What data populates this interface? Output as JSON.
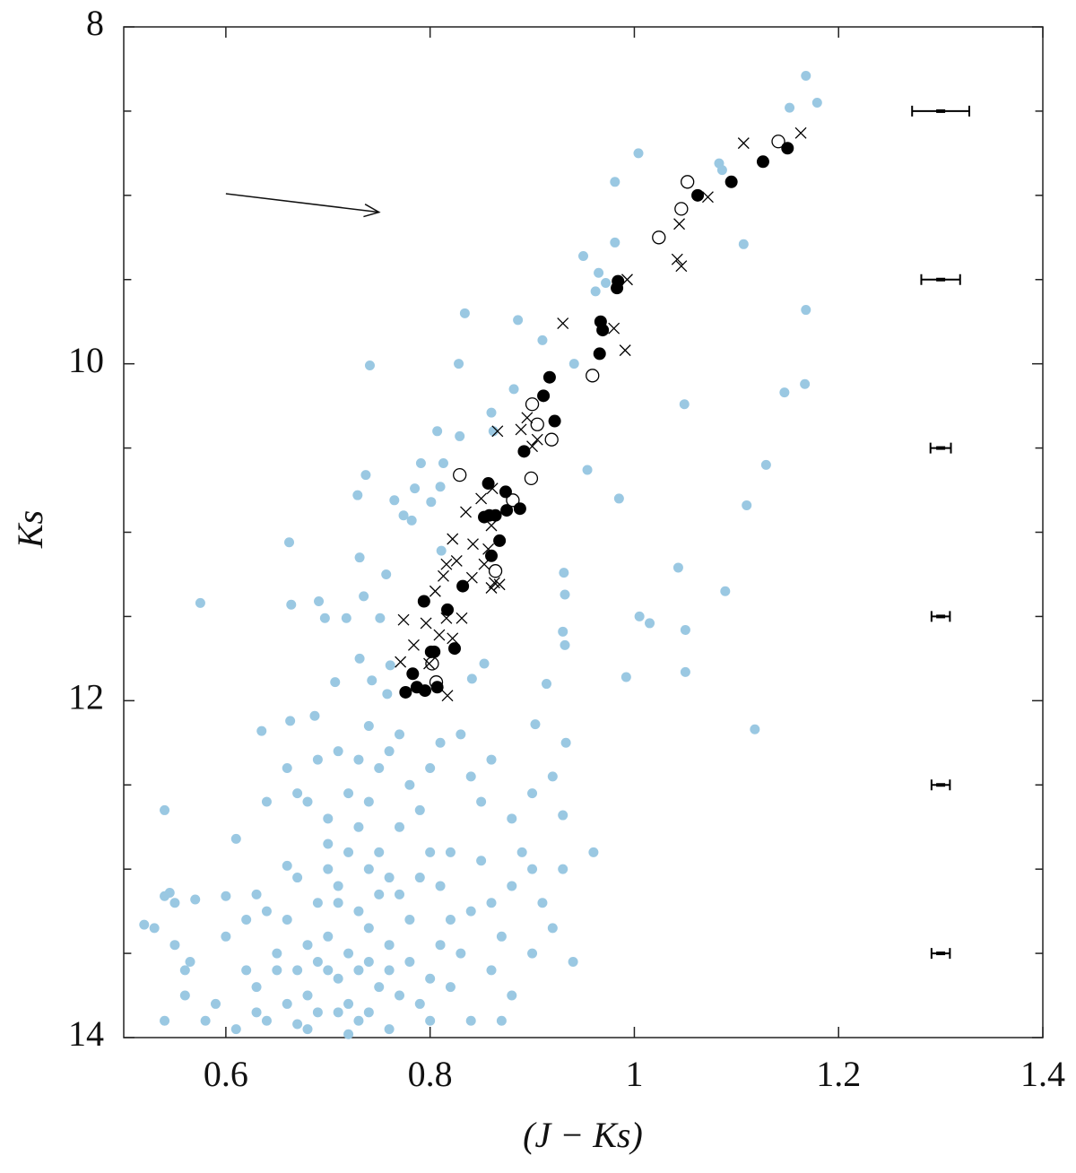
{
  "chart_data": {
    "type": "scatter",
    "xlabel": "(J − Ks)",
    "ylabel": "Ks",
    "xlim": [
      0.5,
      1.4
    ],
    "ylim": [
      8,
      14
    ],
    "y_inverted": true,
    "xticks": [
      0.6,
      0.8,
      1,
      1.2,
      1.4
    ],
    "yticks": [
      8,
      10,
      12,
      14
    ],
    "yminor": [
      8.5,
      9,
      9.5,
      10.5,
      11,
      11.5,
      12.5,
      13,
      13.5
    ],
    "arrow": {
      "from": [
        0.6,
        8.99
      ],
      "to": [
        0.75,
        9.1
      ]
    },
    "series": [
      {
        "marker": "circle-filled",
        "color": "#9ac8e2",
        "x": [
          1.168,
          1.179,
          1.152,
          1.004,
          1.083,
          1.086,
          0.981,
          0.981,
          1.107,
          0.95,
          0.965,
          0.972,
          0.962,
          0.834,
          1.168,
          0.886,
          0.91,
          0.941,
          0.741,
          0.828,
          1.167,
          1.147,
          1.049,
          0.882,
          0.86,
          0.862,
          0.807,
          0.829,
          0.813,
          0.791,
          0.954,
          1.129,
          0.737,
          0.81,
          0.785,
          0.729,
          0.765,
          0.801,
          0.774,
          0.782,
          0.985,
          1.11,
          0.662,
          0.731,
          0.757,
          0.811,
          0.931,
          1.043,
          0.575,
          0.664,
          0.691,
          0.735,
          0.697,
          0.718,
          0.751,
          0.932,
          1.089,
          1.005,
          1.015,
          1.05,
          0.93,
          0.932,
          0.731,
          0.761,
          0.853,
          1.05,
          0.992,
          0.743,
          0.707,
          0.758,
          0.841,
          0.914,
          1.118,
          0.903,
          0.933,
          0.635,
          0.663,
          0.687,
          0.54,
          0.52,
          0.53,
          0.54,
          0.545,
          0.55,
          0.55,
          0.56,
          0.565,
          0.57,
          0.54,
          0.58,
          0.56,
          0.61,
          0.6,
          0.62,
          0.63,
          0.64,
          0.63,
          0.65,
          0.64,
          0.66,
          0.67,
          0.66,
          0.67,
          0.66,
          0.67,
          0.68,
          0.69,
          0.68,
          0.65,
          0.66,
          0.67,
          0.69,
          0.7,
          0.7,
          0.71,
          0.7,
          0.72,
          0.71,
          0.72,
          0.73,
          0.72,
          0.7,
          0.71,
          0.73,
          0.74,
          0.74,
          0.75,
          0.74,
          0.76,
          0.72,
          0.73,
          0.74,
          0.75,
          0.76,
          0.77,
          0.75,
          0.76,
          0.77,
          0.78,
          0.76,
          0.78,
          0.77,
          0.79,
          0.8,
          0.78,
          0.79,
          0.8,
          0.81,
          0.8,
          0.81,
          0.82,
          0.83,
          0.82,
          0.84,
          0.83,
          0.84,
          0.85,
          0.86,
          0.85,
          0.86,
          0.87,
          0.86,
          0.88,
          0.87,
          0.88,
          0.89,
          0.9,
          0.9,
          0.91,
          0.92,
          0.9,
          0.93,
          0.94,
          0.96,
          0.93,
          0.92,
          0.71,
          0.73,
          0.72,
          0.74,
          0.68,
          0.69,
          0.68,
          0.62,
          0.63,
          0.6,
          0.59,
          0.61,
          0.64,
          0.75,
          0.79,
          0.81,
          0.84,
          0.8,
          0.74,
          0.7,
          0.77,
          0.73,
          0.69,
          0.71,
          0.76,
          0.82,
          0.88
        ],
        "values": [
          8.29,
          8.45,
          8.48,
          8.75,
          8.81,
          8.85,
          8.92,
          9.28,
          9.29,
          9.36,
          9.46,
          9.52,
          9.57,
          9.7,
          9.68,
          9.74,
          9.86,
          10,
          10.01,
          10,
          10.12,
          10.17,
          10.24,
          10.15,
          10.29,
          10.4,
          10.4,
          10.43,
          10.59,
          10.59,
          10.63,
          10.6,
          10.66,
          10.73,
          10.74,
          10.78,
          10.81,
          10.82,
          10.9,
          10.93,
          10.8,
          10.84,
          11.06,
          11.15,
          11.25,
          11.11,
          11.24,
          11.21,
          11.42,
          11.43,
          11.41,
          11.38,
          11.51,
          11.51,
          11.51,
          11.37,
          11.35,
          11.5,
          11.54,
          11.58,
          11.59,
          11.67,
          11.75,
          11.79,
          11.78,
          11.83,
          11.86,
          11.88,
          11.89,
          11.96,
          11.87,
          11.9,
          12.17,
          12.14,
          12.25,
          12.18,
          12.12,
          12.09,
          12.65,
          13.33,
          13.35,
          13.16,
          13.14,
          13.2,
          13.45,
          13.6,
          13.55,
          13.18,
          13.9,
          13.9,
          13.75,
          12.82,
          13.16,
          13.6,
          13.7,
          13.9,
          13.85,
          13.5,
          12.6,
          12.4,
          12.55,
          12.98,
          13.05,
          13.3,
          13.6,
          13.75,
          13.85,
          13.95,
          13.6,
          13.8,
          13.92,
          12.35,
          12.7,
          13,
          13.2,
          13.4,
          13.5,
          13.65,
          13.8,
          13.9,
          13.98,
          13.6,
          13.1,
          13.25,
          13.35,
          13.55,
          13.7,
          13.85,
          13.95,
          12.9,
          12.75,
          12.6,
          12.4,
          12.3,
          12.2,
          12.9,
          13.05,
          13.15,
          13.3,
          13.45,
          13.55,
          13.75,
          13.8,
          13.65,
          12.5,
          12.65,
          12.4,
          12.25,
          12.9,
          13.1,
          13.3,
          13.5,
          13.7,
          13.9,
          12.2,
          12.45,
          12.6,
          12.35,
          12.95,
          13.2,
          13.4,
          13.6,
          13.75,
          13.9,
          12.7,
          12.9,
          13,
          12.55,
          13.2,
          13.35,
          13.5,
          13,
          13.55,
          12.9,
          12.68,
          12.45,
          12.3,
          12.35,
          12.55,
          12.15,
          12.6,
          13.2,
          13.45,
          13.3,
          13.15,
          13.4,
          13.8,
          13.95,
          13.25,
          13.15,
          13.05,
          13.45,
          13.25,
          13.9,
          13,
          12.85,
          12.75,
          13.6,
          13.55,
          13.85,
          13.6,
          12.9,
          13.1
        ]
      },
      {
        "marker": "circle-filled",
        "color": "#000000",
        "x": [
          1.15,
          1.126,
          1.095,
          1.062,
          0.983,
          0.984,
          0.967,
          0.969,
          0.966,
          0.917,
          0.911,
          0.922,
          0.892,
          0.857,
          0.874,
          0.875,
          0.888,
          0.853,
          0.858,
          0.864,
          0.868,
          0.86,
          0.832,
          0.794,
          0.817,
          0.801,
          0.804,
          0.824,
          0.783,
          0.787,
          0.795,
          0.776,
          0.807
        ],
        "values": [
          8.72,
          8.8,
          8.92,
          9,
          9.55,
          9.51,
          9.75,
          9.8,
          9.94,
          10.08,
          10.19,
          10.34,
          10.52,
          10.71,
          10.76,
          10.87,
          10.86,
          10.91,
          10.9,
          10.9,
          11.05,
          11.14,
          11.32,
          11.41,
          11.46,
          11.71,
          11.71,
          11.69,
          11.84,
          11.92,
          11.94,
          11.95,
          11.92
        ]
      },
      {
        "marker": "circle-open",
        "color": "#000000",
        "x": [
          1.141,
          1.052,
          1.046,
          1.024,
          0.959,
          0.9,
          0.905,
          0.919,
          0.829,
          0.899,
          0.881,
          0.864,
          0.806,
          0.802
        ],
        "values": [
          8.68,
          8.92,
          9.08,
          9.25,
          10.07,
          10.24,
          10.36,
          10.45,
          10.66,
          10.68,
          10.81,
          11.23,
          11.89,
          11.78
        ]
      },
      {
        "marker": "cross",
        "color": "#000000",
        "x": [
          1.163,
          1.107,
          1.072,
          1.044,
          1.042,
          1.046,
          0.993,
          0.98,
          0.991,
          0.93,
          0.889,
          0.895,
          0.905,
          0.9,
          0.866,
          0.861,
          0.85,
          0.835,
          0.86,
          0.822,
          0.842,
          0.857,
          0.816,
          0.826,
          0.813,
          0.853,
          0.863,
          0.868,
          0.86,
          0.841,
          0.805,
          0.774,
          0.796,
          0.816,
          0.831,
          0.784,
          0.809,
          0.822,
          0.771,
          0.799,
          0.817
        ],
        "values": [
          8.63,
          8.69,
          9.01,
          9.17,
          9.38,
          9.42,
          9.5,
          9.79,
          9.92,
          9.76,
          10.39,
          10.32,
          10.45,
          10.49,
          10.4,
          10.74,
          10.8,
          10.88,
          10.96,
          11.04,
          11.07,
          11.1,
          11.19,
          11.17,
          11.26,
          11.19,
          11.3,
          11.31,
          11.33,
          11.27,
          11.35,
          11.52,
          11.54,
          11.51,
          11.51,
          11.67,
          11.61,
          11.63,
          11.77,
          11.78,
          11.97
        ]
      },
      {
        "marker": "errorbar",
        "color": "#000000",
        "x": [
          1.3,
          1.3,
          1.3,
          1.3,
          1.3,
          1.3
        ],
        "values": [
          8.5,
          9.5,
          10.5,
          11.5,
          12.5,
          13.5
        ],
        "xerr": [
          0.028,
          0.019,
          0.01,
          0.009,
          0.009,
          0.009
        ]
      }
    ]
  }
}
